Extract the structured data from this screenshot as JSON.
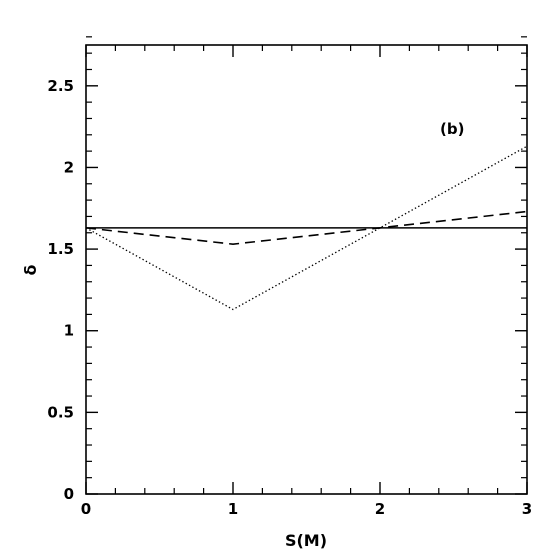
{
  "chart_data": {
    "type": "line",
    "xlabel": "S(M)",
    "ylabel": "δ",
    "xlim": [
      0,
      3
    ],
    "ylim": [
      0,
      2.75
    ],
    "x_major_ticks": [
      0,
      1,
      2,
      3
    ],
    "x_tick_labels": [
      "0",
      "1",
      "2",
      "3"
    ],
    "y_major_ticks": [
      0,
      0.5,
      1,
      1.5,
      2,
      2.5
    ],
    "y_tick_labels": [
      "0",
      "0.5",
      "1",
      "1.5",
      "2",
      "2.5"
    ],
    "x_minor_step": 0.2,
    "y_minor_step": 0.1,
    "grid": false,
    "annotation": "(b)",
    "series": [
      {
        "style": "solid",
        "x": [
          0,
          3
        ],
        "y": [
          1.63,
          1.63
        ]
      },
      {
        "style": "dashed",
        "x": [
          0,
          1,
          3
        ],
        "y": [
          1.63,
          1.53,
          1.73
        ]
      },
      {
        "style": "dotted",
        "x": [
          0,
          1,
          3
        ],
        "y": [
          1.63,
          1.13,
          2.13
        ]
      }
    ]
  }
}
